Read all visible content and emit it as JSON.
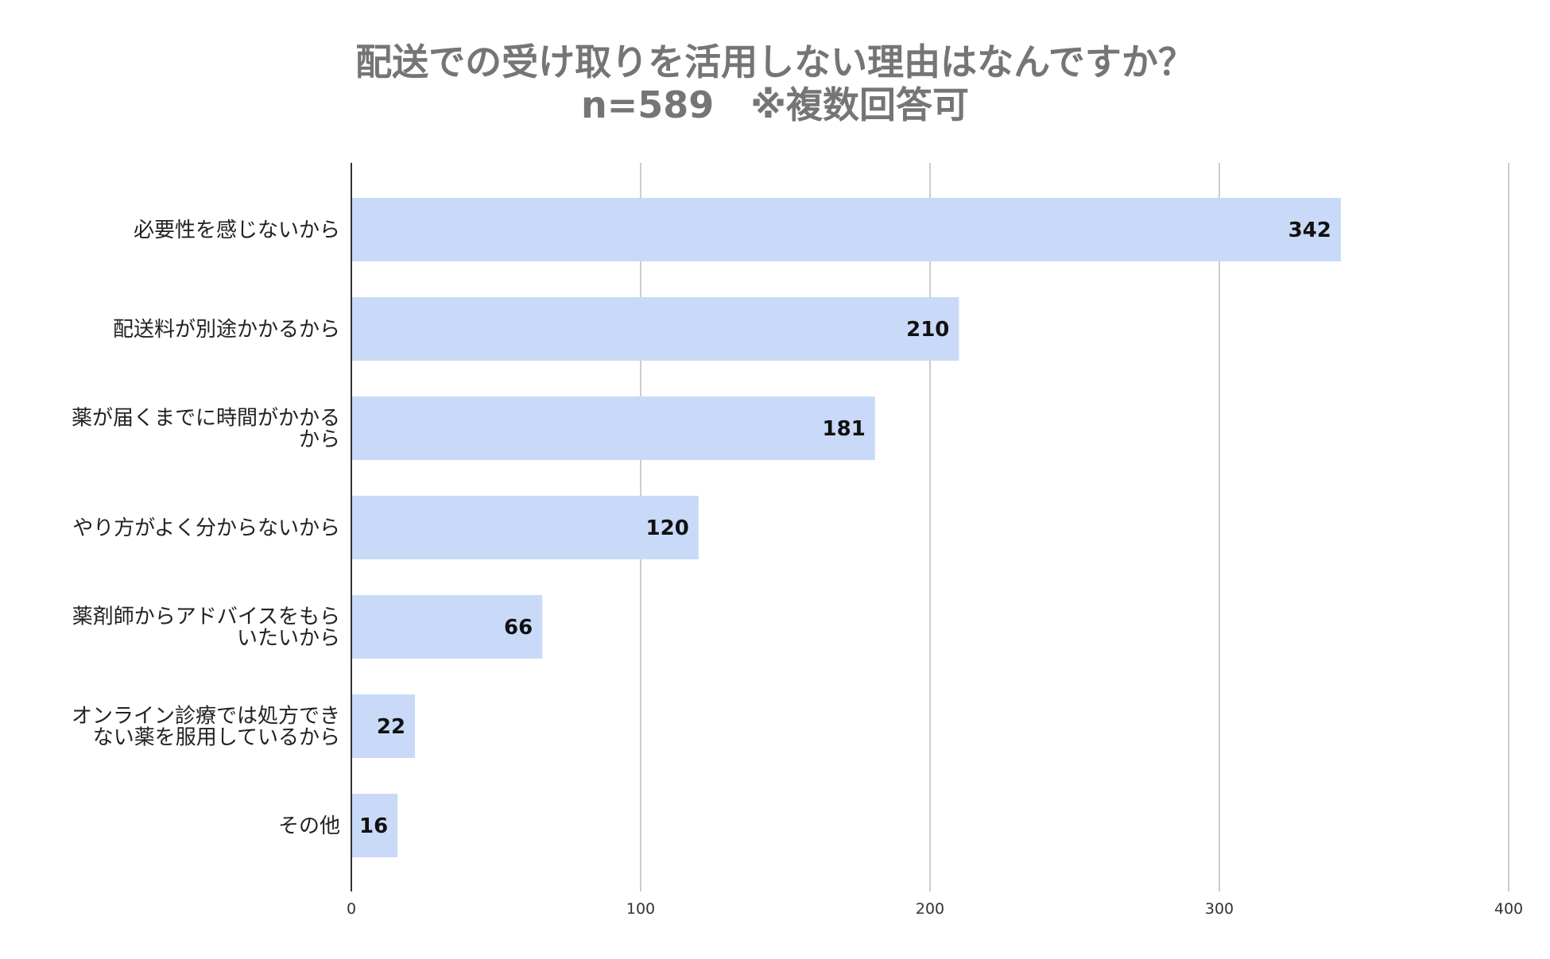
{
  "chart_data": {
    "type": "bar",
    "orientation": "horizontal",
    "title": "配送での受け取りを活用しない理由はなんですか？",
    "subtitle": "n=589　※複数回答可",
    "categories": [
      [
        "必要性を感じないから"
      ],
      [
        "配送料が別途かかるから"
      ],
      [
        "薬が届くまでに時間がかかる",
        "から"
      ],
      [
        "やり方がよく分からないから"
      ],
      [
        "薬剤師からアドバイスをもら",
        "いたいから"
      ],
      [
        "オンライン診療では処方でき",
        "ない薬を服用しているから"
      ],
      [
        "その他"
      ]
    ],
    "values": [
      342,
      210,
      181,
      120,
      66,
      22,
      16
    ],
    "value_labels": [
      "342",
      "210",
      "181",
      "120",
      "66",
      "22",
      "16"
    ],
    "xlim": [
      0,
      400
    ],
    "ticks": [
      0,
      100,
      200,
      300,
      400
    ],
    "tick_labels": [
      "0",
      "100",
      "200",
      "300",
      "400"
    ],
    "grid": true,
    "bar_color": "#c9daf8",
    "xlabel": "",
    "ylabel": ""
  }
}
